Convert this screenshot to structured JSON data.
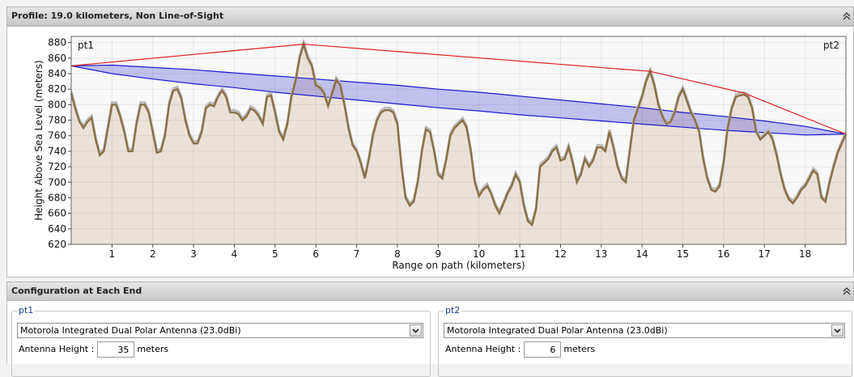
{
  "profile_panel": {
    "title": "Profile: 19.0 kilometers, Non Line-of-Sight"
  },
  "chart_data": {
    "type": "line",
    "xlabel": "Range on path (kilometers)",
    "ylabel": "Height Above Sea Level (meters)",
    "annotations": [
      "pt1",
      "pt2"
    ],
    "xlim": [
      0,
      19
    ],
    "xticks": [
      1,
      2,
      3,
      4,
      5,
      6,
      7,
      8,
      9,
      10,
      11,
      12,
      13,
      14,
      15,
      16,
      17,
      18
    ],
    "ylim": [
      620,
      888
    ],
    "yticks": [
      620,
      640,
      660,
      680,
      700,
      720,
      740,
      760,
      780,
      800,
      820,
      840,
      860,
      880
    ],
    "grid": true,
    "x": [
      0,
      0.1,
      0.2,
      0.3,
      0.4,
      0.5,
      0.6,
      0.7,
      0.8,
      0.9,
      1,
      1.1,
      1.2,
      1.3,
      1.4,
      1.5,
      1.6,
      1.7,
      1.8,
      1.9,
      2,
      2.1,
      2.2,
      2.3,
      2.4,
      2.5,
      2.6,
      2.7,
      2.8,
      2.9,
      3,
      3.1,
      3.2,
      3.3,
      3.4,
      3.5,
      3.6,
      3.7,
      3.8,
      3.9,
      4,
      4.1,
      4.2,
      4.3,
      4.4,
      4.5,
      4.6,
      4.7,
      4.8,
      4.9,
      5,
      5.1,
      5.2,
      5.3,
      5.4,
      5.5,
      5.6,
      5.7,
      5.8,
      5.9,
      6,
      6.1,
      6.2,
      6.3,
      6.4,
      6.5,
      6.6,
      6.7,
      6.8,
      6.9,
      7,
      7.1,
      7.2,
      7.3,
      7.4,
      7.5,
      7.6,
      7.7,
      7.8,
      7.9,
      8,
      8.1,
      8.2,
      8.3,
      8.4,
      8.5,
      8.6,
      8.7,
      8.8,
      8.9,
      9,
      9.1,
      9.2,
      9.3,
      9.4,
      9.5,
      9.6,
      9.7,
      9.8,
      9.9,
      10,
      10.1,
      10.2,
      10.3,
      10.4,
      10.5,
      10.6,
      10.7,
      10.8,
      10.9,
      11,
      11.1,
      11.2,
      11.3,
      11.4,
      11.5,
      11.6,
      11.7,
      11.8,
      11.9,
      12,
      12.1,
      12.2,
      12.3,
      12.4,
      12.5,
      12.6,
      12.7,
      12.8,
      12.9,
      13,
      13.1,
      13.2,
      13.3,
      13.4,
      13.5,
      13.6,
      13.7,
      13.8,
      13.9,
      14,
      14.1,
      14.2,
      14.3,
      14.4,
      14.5,
      14.6,
      14.7,
      14.8,
      14.9,
      15,
      15.1,
      15.2,
      15.3,
      15.4,
      15.5,
      15.6,
      15.7,
      15.8,
      15.9,
      16,
      16.1,
      16.2,
      16.3,
      16.4,
      16.5,
      16.6,
      16.7,
      16.8,
      16.9,
      17,
      17.1,
      17.2,
      17.3,
      17.4,
      17.5,
      17.6,
      17.7,
      17.8,
      17.9,
      18,
      18.1,
      18.2,
      18.3,
      18.4,
      18.5,
      18.6,
      18.7,
      18.8,
      18.9,
      19
    ],
    "series": [
      {
        "color": "#8b7046",
        "values": [
          815,
          795,
          778,
          770,
          778,
          783,
          755,
          735,
          740,
          770,
          800,
          800,
          785,
          765,
          740,
          740,
          775,
          800,
          800,
          790,
          765,
          738,
          740,
          760,
          800,
          818,
          820,
          808,
          780,
          760,
          750,
          750,
          765,
          795,
          800,
          798,
          810,
          818,
          810,
          790,
          790,
          788,
          780,
          785,
          795,
          792,
          785,
          775,
          810,
          812,
          790,
          765,
          755,
          775,
          810,
          830,
          860,
          878,
          860,
          850,
          825,
          822,
          815,
          798,
          815,
          832,
          825,
          800,
          770,
          748,
          740,
          725,
          705,
          730,
          760,
          780,
          790,
          793,
          793,
          790,
          775,
          720,
          680,
          670,
          675,
          700,
          740,
          768,
          765,
          740,
          710,
          705,
          730,
          760,
          770,
          775,
          780,
          770,
          740,
          700,
          682,
          690,
          695,
          685,
          670,
          660,
          672,
          685,
          695,
          710,
          700,
          670,
          650,
          645,
          665,
          720,
          725,
          730,
          740,
          745,
          728,
          730,
          745,
          725,
          700,
          710,
          730,
          720,
          728,
          745,
          745,
          740,
          765,
          745,
          720,
          705,
          700,
          740,
          780,
          795,
          810,
          830,
          843,
          825,
          800,
          785,
          775,
          778,
          790,
          810,
          820,
          805,
          790,
          780,
          765,
          730,
          705,
          690,
          688,
          695,
          725,
          770,
          795,
          810,
          812,
          813,
          810,
          795,
          765,
          755,
          760,
          765,
          755,
          735,
          710,
          690,
          678,
          673,
          680,
          690,
          695,
          705,
          715,
          710,
          680,
          675,
          700,
          720,
          738,
          750,
          762
        ]
      }
    ],
    "los": {
      "color": "#e02020",
      "x": [
        0,
        5.7,
        14.2,
        16.5,
        19
      ],
      "values": [
        850,
        878,
        843,
        815,
        762
      ]
    },
    "fresnel": {
      "color": "#1a1ad0",
      "x": [
        0,
        1,
        2,
        3,
        4,
        5,
        6,
        7,
        8,
        9,
        10,
        11,
        12,
        13,
        14,
        15,
        16,
        17,
        18,
        19
      ],
      "upper": [
        850,
        851,
        848,
        845,
        841,
        837,
        833,
        829,
        825,
        820,
        816,
        811,
        806,
        801,
        796,
        790,
        785,
        779,
        772,
        762
      ],
      "lower": [
        850,
        840,
        833,
        827,
        822,
        816,
        811,
        806,
        801,
        796,
        792,
        787,
        783,
        779,
        775,
        771,
        767,
        764,
        761,
        762
      ]
    }
  },
  "config_panel": {
    "title": "Configuration at Each End",
    "ends": [
      {
        "legend": "pt1",
        "antenna": "Motorola Integrated Dual Polar Antenna (23.0dBi)",
        "height_label": "Antenna Height :",
        "height": 35,
        "unit": "meters"
      },
      {
        "legend": "pt2",
        "antenna": "Motorola Integrated Dual Polar Antenna (23.0dBi)",
        "height_label": "Antenna Height :",
        "height": 6,
        "unit": "meters"
      }
    ]
  }
}
